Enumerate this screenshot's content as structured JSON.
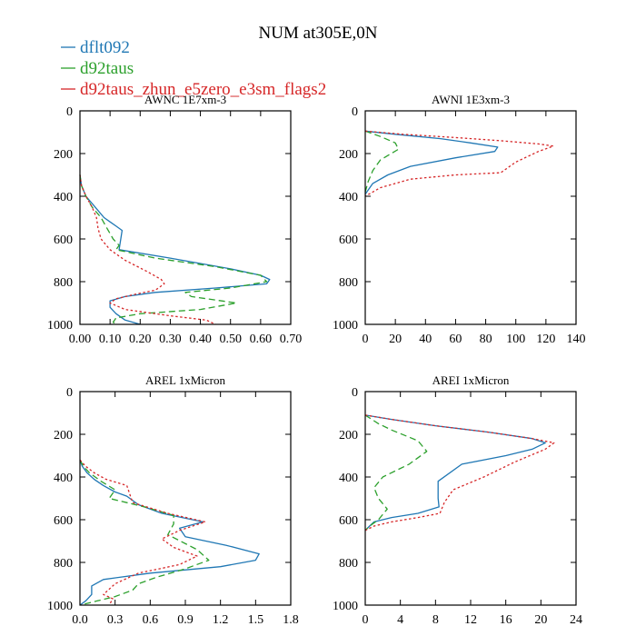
{
  "figure": {
    "title": "NUM at305E,0N",
    "legend": [
      {
        "label": "dflt092",
        "color": "#1f77b4",
        "dash": "solid"
      },
      {
        "label": "d92taus",
        "color": "#2ca02c",
        "dash": "dashed"
      },
      {
        "label": "d92taus_zhun_e5zero_e3sm_flags2",
        "color": "#d62728",
        "dash": "dotted"
      }
    ]
  },
  "chart_data": [
    {
      "type": "line",
      "title": "AWNC  1E7xm-3",
      "xlim": [
        0,
        0.7
      ],
      "xticks": [
        0,
        0.1,
        0.2,
        0.3,
        0.4,
        0.5,
        0.6,
        0.7
      ],
      "xtick_labels": [
        "0.00",
        "0.10",
        "0.20",
        "0.30",
        "0.40",
        "0.50",
        "0.60",
        "0.70"
      ],
      "ylim": [
        0,
        1000
      ],
      "yticks": [
        0,
        200,
        400,
        600,
        800,
        1000
      ],
      "ytick_labels": [
        "0",
        "200",
        "400",
        "600",
        "800",
        "1000"
      ],
      "series": [
        {
          "name": "dflt092",
          "x": [
            0,
            0.005,
            0.02,
            0.05,
            0.08,
            0.1,
            0.12,
            0.14,
            0.13,
            0.3,
            0.5,
            0.6,
            0.63,
            0.62,
            0.45,
            0.25,
            0.15,
            0.1,
            0.1,
            0.12,
            0.15,
            0.2
          ],
          "y": [
            300,
            350,
            400,
            450,
            500,
            520,
            540,
            560,
            650,
            690,
            740,
            770,
            790,
            810,
            830,
            850,
            870,
            890,
            920,
            950,
            980,
            1000
          ]
        },
        {
          "name": "d92taus",
          "x": [
            0,
            0.005,
            0.02,
            0.04,
            0.07,
            0.09,
            0.11,
            0.13,
            0.12,
            0.25,
            0.45,
            0.6,
            0.62,
            0.5,
            0.35,
            0.37,
            0.52,
            0.4,
            0.2,
            0.12,
            0.11,
            0.12
          ],
          "y": [
            300,
            350,
            400,
            450,
            500,
            550,
            600,
            630,
            650,
            690,
            730,
            770,
            800,
            830,
            850,
            870,
            900,
            930,
            950,
            970,
            990,
            1000
          ]
        },
        {
          "name": "d92taus_zhun_e5zero_e3sm_flags2",
          "x": [
            0,
            0.005,
            0.02,
            0.04,
            0.055,
            0.06,
            0.07,
            0.1,
            0.15,
            0.22,
            0.27,
            0.28,
            0.25,
            0.18,
            0.12,
            0.1,
            0.15,
            0.3,
            0.42,
            0.45
          ],
          "y": [
            300,
            350,
            400,
            450,
            500,
            550,
            600,
            650,
            700,
            750,
            790,
            810,
            840,
            860,
            880,
            900,
            930,
            960,
            980,
            1000
          ]
        }
      ]
    },
    {
      "type": "line",
      "title": "AWNI  1E3xm-3",
      "xlim": [
        0,
        140
      ],
      "xticks": [
        0,
        20,
        40,
        60,
        80,
        100,
        120,
        140
      ],
      "xtick_labels": [
        "0",
        "20",
        "40",
        "60",
        "80",
        "100",
        "120",
        "140"
      ],
      "ylim": [
        0,
        1000
      ],
      "yticks": [
        0,
        200,
        400,
        600,
        800,
        1000
      ],
      "ytick_labels": [
        "0",
        "200",
        "400",
        "600",
        "800",
        "1000"
      ],
      "series": [
        {
          "name": "dflt092",
          "x": [
            0,
            20,
            50,
            70,
            88,
            86,
            60,
            30,
            15,
            5,
            0
          ],
          "y": [
            95,
            110,
            130,
            150,
            170,
            190,
            220,
            260,
            300,
            340,
            390
          ]
        },
        {
          "name": "d92taus",
          "x": [
            0,
            10,
            20,
            22,
            10,
            5,
            2,
            0
          ],
          "y": [
            95,
            120,
            150,
            180,
            230,
            280,
            330,
            380
          ]
        },
        {
          "name": "d92taus_zhun_e5zero_e3sm_flags2",
          "x": [
            0,
            25,
            60,
            90,
            115,
            125,
            115,
            100,
            90,
            60,
            30,
            10,
            0
          ],
          "y": [
            95,
            110,
            125,
            140,
            155,
            165,
            190,
            240,
            290,
            300,
            320,
            360,
            400
          ]
        }
      ]
    },
    {
      "type": "line",
      "title": "AREL  1xMicron",
      "xlim": [
        0,
        1.8
      ],
      "xticks": [
        0,
        0.3,
        0.6,
        0.9,
        1.2,
        1.5,
        1.8
      ],
      "xtick_labels": [
        "0.0",
        "0.3",
        "0.6",
        "0.9",
        "1.2",
        "1.5",
        "1.8"
      ],
      "ylim": [
        0,
        1000
      ],
      "yticks": [
        0,
        200,
        400,
        600,
        800,
        1000
      ],
      "ytick_labels": [
        "0",
        "200",
        "400",
        "600",
        "800",
        "1000"
      ],
      "series": [
        {
          "name": "dflt092",
          "x": [
            0,
            0.02,
            0.06,
            0.12,
            0.2,
            0.3,
            0.4,
            0.5,
            0.7,
            1.05,
            0.85,
            0.9,
            1.25,
            1.53,
            1.5,
            1.2,
            0.6,
            0.2,
            0.1,
            0.1,
            0.05,
            0.0
          ],
          "y": [
            320,
            350,
            380,
            410,
            440,
            470,
            490,
            530,
            570,
            610,
            640,
            680,
            720,
            760,
            790,
            820,
            850,
            880,
            910,
            950,
            980,
            1000
          ]
        },
        {
          "name": "d92taus",
          "x": [
            0,
            0.03,
            0.08,
            0.18,
            0.3,
            0.25,
            0.55,
            0.8,
            0.8,
            0.75,
            1.0,
            1.1,
            0.9,
            0.65,
            0.5,
            0.45,
            0.3,
            0.15,
            0.0
          ],
          "y": [
            320,
            350,
            380,
            420,
            460,
            500,
            540,
            580,
            620,
            670,
            740,
            790,
            830,
            870,
            900,
            930,
            960,
            980,
            1000
          ]
        },
        {
          "name": "d92taus_zhun_e5zero_e3sm_flags2",
          "x": [
            0,
            0.05,
            0.12,
            0.22,
            0.4,
            0.45,
            0.75,
            1.07,
            0.85,
            0.7,
            0.8,
            1.0,
            0.85,
            0.5,
            0.3,
            0.2,
            0.28,
            0.25
          ],
          "y": [
            320,
            350,
            380,
            410,
            440,
            520,
            570,
            610,
            650,
            690,
            730,
            770,
            810,
            850,
            900,
            950,
            970,
            1000
          ]
        }
      ]
    },
    {
      "type": "line",
      "title": "AREI  1xMicron",
      "xlim": [
        0,
        24
      ],
      "xticks": [
        0,
        4,
        8,
        12,
        16,
        20,
        24
      ],
      "xtick_labels": [
        "0",
        "4",
        "8",
        "12",
        "16",
        "20",
        "24"
      ],
      "ylim": [
        0,
        1000
      ],
      "yticks": [
        0,
        200,
        400,
        600,
        800,
        1000
      ],
      "ytick_labels": [
        "0",
        "200",
        "400",
        "600",
        "800",
        "1000"
      ],
      "series": [
        {
          "name": "dflt092",
          "x": [
            0,
            3,
            8,
            14,
            19,
            20.5,
            19,
            16,
            11,
            8.3,
            8.3,
            8.4,
            6,
            3,
            1,
            0.5,
            0
          ],
          "y": [
            110,
            130,
            160,
            190,
            220,
            240,
            270,
            300,
            340,
            420,
            500,
            540,
            570,
            590,
            610,
            630,
            650
          ]
        },
        {
          "name": "d92taus",
          "x": [
            0,
            1.5,
            3,
            6,
            7,
            5,
            2,
            1,
            1.5,
            2.5,
            1.5,
            0.5,
            0
          ],
          "y": [
            110,
            150,
            180,
            230,
            280,
            340,
            400,
            450,
            500,
            550,
            600,
            630,
            650
          ]
        },
        {
          "name": "d92taus_zhun_e5zero_e3sm_flags2",
          "x": [
            0,
            3,
            8,
            14,
            19,
            21.5,
            20.5,
            17,
            13.5,
            10,
            9,
            8.5,
            6,
            3,
            1,
            0
          ],
          "y": [
            110,
            130,
            160,
            190,
            220,
            240,
            270,
            330,
            400,
            460,
            520,
            570,
            590,
            610,
            630,
            650
          ]
        }
      ]
    }
  ]
}
